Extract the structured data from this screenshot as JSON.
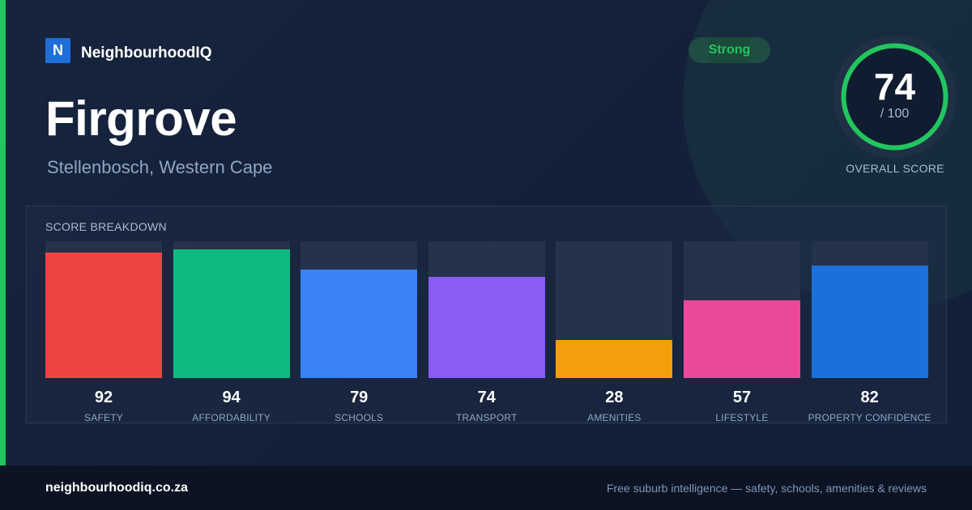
{
  "brand": {
    "logo_letter": "N",
    "name": "NeighbourhoodIQ"
  },
  "suburb": {
    "name": "Firgrove",
    "location": "Stellenbosch, Western Cape"
  },
  "badge": {
    "label": "Strong",
    "color": "#22c55e"
  },
  "overall": {
    "score": "74",
    "score_value": 74,
    "max_label": "/ 100",
    "max_value": 100,
    "label": "OVERALL SCORE",
    "ring_color": "#22c55e"
  },
  "breakdown": {
    "title": "SCORE BREAKDOWN",
    "items": [
      {
        "label": "SAFETY",
        "value": "92",
        "score": 92,
        "color": "#ef4444"
      },
      {
        "label": "AFFORDABILITY",
        "value": "94",
        "score": 94,
        "color": "#10b981"
      },
      {
        "label": "SCHOOLS",
        "value": "79",
        "score": 79,
        "color": "#3b82f6"
      },
      {
        "label": "TRANSPORT",
        "value": "74",
        "score": 74,
        "color": "#8b5cf6"
      },
      {
        "label": "AMENITIES",
        "value": "28",
        "score": 28,
        "color": "#f59e0b"
      },
      {
        "label": "LIFESTYLE",
        "value": "57",
        "score": 57,
        "color": "#ec4899"
      },
      {
        "label": "PROPERTY CONFIDENCE",
        "value": "82",
        "score": 82,
        "color": "#1d6fd9"
      }
    ]
  },
  "footer": {
    "domain": "neighbourhoodiq.co.za",
    "tagline": "Free suburb intelligence — safety, schools, amenities & reviews"
  }
}
